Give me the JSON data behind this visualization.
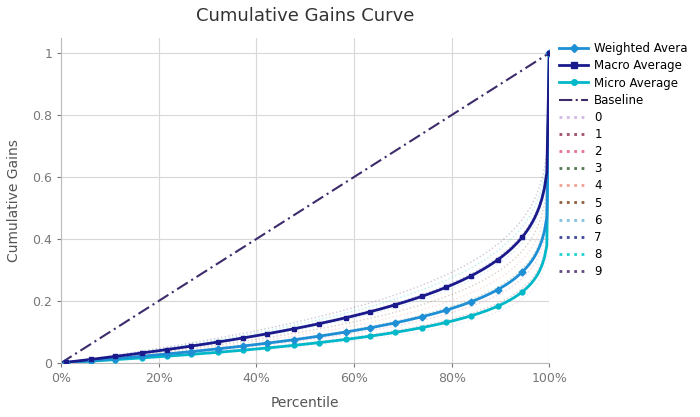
{
  "title": "Cumulative Gains Curve",
  "xlabel": "Percentile",
  "ylabel": "Cumulative Gains",
  "xlim": [
    0,
    1
  ],
  "ylim": [
    0,
    1.05
  ],
  "weighted_avg_color": "#1E8FD5",
  "macro_avg_color": "#1A1A8C",
  "micro_avg_color": "#00B8C8",
  "baseline_color": "#3D2B6B",
  "class_colors": [
    "#D4B8E8",
    "#A05070",
    "#E87090",
    "#507850",
    "#F0A090",
    "#906040",
    "#80C0E0",
    "#404898",
    "#20D0D0",
    "#604880"
  ],
  "background_color": "#FFFFFF",
  "grid_color": "#D8D8D8",
  "title_fontsize": 13,
  "label_fontsize": 10,
  "tick_fontsize": 9,
  "weighted_exponent": 0.12,
  "macro_exponent": 0.18,
  "micro_exponent": 0.09,
  "n_points": 200,
  "n_markers": 20
}
